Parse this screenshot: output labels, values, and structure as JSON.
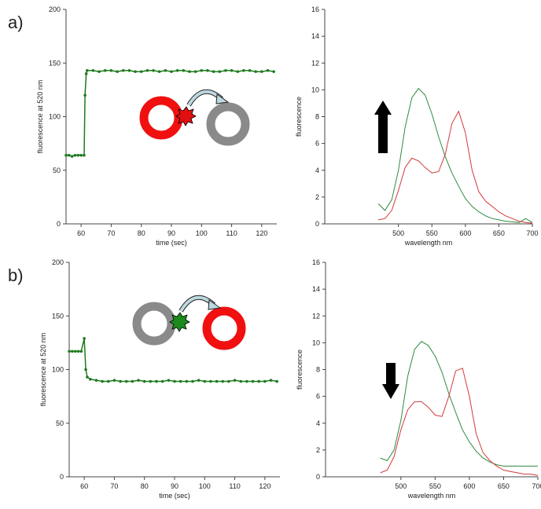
{
  "panels": [
    "a)",
    "b)"
  ],
  "chart_data": [
    {
      "type": "line",
      "xlabel": "time (sec)",
      "ylabel": "fluorescence at 520 nm",
      "xlim": [
        55,
        125
      ],
      "xticks": [
        60,
        70,
        80,
        90,
        100,
        110,
        120
      ],
      "ylim": [
        0,
        200
      ],
      "yticks": [
        0,
        50,
        100,
        150,
        200
      ],
      "series": [
        {
          "color": "#1e7a1e",
          "x": [
            55,
            56,
            57,
            58,
            59,
            60,
            61,
            61.3,
            61.7,
            62,
            64,
            66,
            68,
            70,
            72,
            74,
            76,
            78,
            80,
            82,
            84,
            86,
            88,
            90,
            92,
            94,
            96,
            98,
            100,
            102,
            104,
            106,
            108,
            110,
            112,
            114,
            116,
            118,
            120,
            122,
            124
          ],
          "values": [
            64,
            64,
            63,
            64,
            64,
            64,
            64,
            120,
            140,
            143,
            143,
            142,
            143,
            143,
            142,
            143,
            143,
            142,
            142,
            143,
            143,
            142,
            143,
            142,
            143,
            143,
            142,
            142,
            143,
            143,
            142,
            142,
            143,
            143,
            142,
            143,
            143,
            142,
            142,
            143,
            142
          ]
        }
      ]
    },
    {
      "type": "line",
      "xlabel": "wavelength nm",
      "ylabel": "fluorescence",
      "xlim": [
        390,
        700
      ],
      "xticks": [
        500,
        550,
        600,
        650,
        700
      ],
      "ylim": [
        0,
        16
      ],
      "yticks": [
        0,
        2,
        4,
        6,
        8,
        10,
        12,
        14,
        16
      ],
      "series": [
        {
          "color": "#2e8b3e",
          "x": [
            470,
            480,
            490,
            500,
            510,
            520,
            530,
            540,
            550,
            560,
            570,
            580,
            590,
            600,
            610,
            620,
            630,
            640,
            650,
            660,
            670,
            680,
            690,
            700
          ],
          "values": [
            1.5,
            1.0,
            1.8,
            4.0,
            7.2,
            9.4,
            10.1,
            9.6,
            8.2,
            6.5,
            5.0,
            3.8,
            2.8,
            1.9,
            1.3,
            0.9,
            0.6,
            0.4,
            0.3,
            0.2,
            0.15,
            0.1,
            0.4,
            0.1
          ]
        },
        {
          "color": "#d23a3a",
          "x": [
            470,
            480,
            490,
            500,
            510,
            520,
            530,
            540,
            550,
            560,
            570,
            580,
            590,
            600,
            610,
            620,
            630,
            640,
            650,
            660,
            670,
            680,
            690,
            700
          ],
          "values": [
            0.3,
            0.4,
            1.0,
            2.5,
            4.2,
            4.9,
            4.7,
            4.2,
            3.8,
            3.9,
            5.2,
            7.5,
            8.4,
            6.8,
            4.0,
            2.4,
            1.7,
            1.3,
            0.9,
            0.6,
            0.4,
            0.2,
            0.1,
            0.05
          ]
        }
      ]
    },
    {
      "type": "line",
      "xlabel": "time (sec)",
      "ylabel": "fluorescence at 520 nm",
      "xlim": [
        55,
        125
      ],
      "xticks": [
        60,
        70,
        80,
        90,
        100,
        110,
        120
      ],
      "ylim": [
        0,
        200
      ],
      "yticks": [
        0,
        50,
        100,
        150,
        200
      ],
      "series": [
        {
          "color": "#1e7a1e",
          "x": [
            55,
            56,
            57,
            58,
            59,
            60,
            60.5,
            61,
            62,
            64,
            66,
            68,
            70,
            72,
            74,
            76,
            78,
            80,
            82,
            84,
            86,
            88,
            90,
            92,
            94,
            96,
            98,
            100,
            102,
            104,
            106,
            108,
            110,
            112,
            114,
            116,
            118,
            120,
            122,
            124
          ],
          "values": [
            117,
            117,
            117,
            117,
            117,
            129,
            100,
            93,
            91,
            90,
            89,
            89,
            90,
            89,
            89,
            89,
            90,
            89,
            89,
            89,
            89,
            90,
            89,
            89,
            89,
            89,
            90,
            89,
            89,
            89,
            89,
            89,
            90,
            89,
            89,
            89,
            89,
            89,
            90,
            89
          ]
        }
      ]
    },
    {
      "type": "line",
      "xlabel": "wavelength nm",
      "ylabel": "fluorescence",
      "xlim": [
        390,
        700
      ],
      "xticks": [
        500,
        550,
        600,
        650,
        700
      ],
      "ylim": [
        0,
        16
      ],
      "yticks": [
        0,
        2,
        4,
        6,
        8,
        10,
        12,
        14,
        16
      ],
      "series": [
        {
          "color": "#2e8b3e",
          "x": [
            470,
            480,
            490,
            500,
            510,
            520,
            530,
            540,
            550,
            560,
            570,
            580,
            590,
            600,
            610,
            620,
            630,
            640,
            650,
            660,
            670,
            680,
            690,
            700
          ],
          "values": [
            1.4,
            1.2,
            2.0,
            4.2,
            7.5,
            9.5,
            10.1,
            9.8,
            9.0,
            7.8,
            6.2,
            4.8,
            3.5,
            2.6,
            1.9,
            1.4,
            1.1,
            0.9,
            0.8,
            0.8,
            0.8,
            0.8,
            0.8,
            0.8
          ]
        },
        {
          "color": "#d23a3a",
          "x": [
            470,
            480,
            490,
            500,
            510,
            520,
            530,
            540,
            550,
            560,
            570,
            580,
            590,
            600,
            610,
            620,
            630,
            640,
            650,
            660,
            670,
            680,
            690,
            700
          ],
          "values": [
            0.3,
            0.5,
            1.5,
            3.5,
            5.0,
            5.6,
            5.6,
            5.2,
            4.6,
            4.5,
            6.0,
            7.9,
            8.1,
            6.0,
            3.2,
            1.8,
            1.2,
            0.8,
            0.5,
            0.4,
            0.3,
            0.2,
            0.2,
            0.1
          ]
        }
      ]
    }
  ]
}
